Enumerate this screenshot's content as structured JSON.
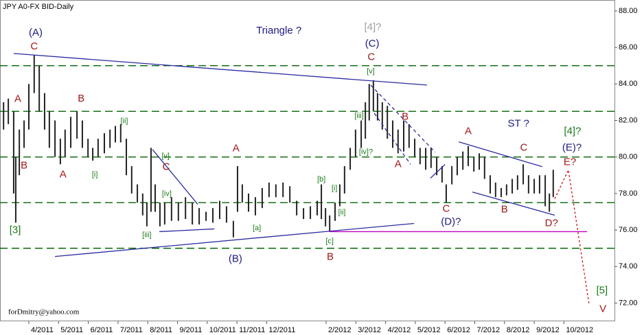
{
  "chart_data": {
    "type": "hilo",
    "title": "JPY A0-FX BID-Daily",
    "watermark": "forDmitry@yahoo.com",
    "color": "#222222",
    "xlim": [
      -0.97,
      19.7
    ],
    "ylim": [
      71.0,
      88.6
    ],
    "xticks": [
      {
        "value": 0,
        "label": "4/2011"
      },
      {
        "value": 1,
        "label": "5/2011"
      },
      {
        "value": 2,
        "label": "6/2011"
      },
      {
        "value": 3,
        "label": "7/2011"
      },
      {
        "value": 4,
        "label": "8/2011"
      },
      {
        "value": 5,
        "label": "9/2011"
      },
      {
        "value": 6,
        "label": "10/2011"
      },
      {
        "value": 7,
        "label": "11/2011"
      },
      {
        "value": 8,
        "label": "12/2011"
      },
      {
        "value": 10,
        "label": "2/2012"
      },
      {
        "value": 11,
        "label": "3/2012"
      },
      {
        "value": 12,
        "label": "4/2012"
      },
      {
        "value": 13,
        "label": "5/2012"
      },
      {
        "value": 14,
        "label": "6/2012"
      },
      {
        "value": 15,
        "label": "7/2012"
      },
      {
        "value": 16,
        "label": "8/2012"
      },
      {
        "value": 17,
        "label": "9/2012"
      },
      {
        "value": 18,
        "label": "10/2012"
      }
    ],
    "yticks": [
      {
        "value": 72,
        "label": "72.00"
      },
      {
        "value": 74,
        "label": "74.00"
      },
      {
        "value": 76,
        "label": "76.00"
      },
      {
        "value": 78,
        "label": "78.00"
      },
      {
        "value": 80,
        "label": "80.00"
      },
      {
        "value": 82,
        "label": "82.00"
      },
      {
        "value": 84,
        "label": "84.00"
      },
      {
        "value": 86,
        "label": "86.00"
      },
      {
        "value": 88,
        "label": "88.00"
      }
    ],
    "levels": [
      85,
      82.5,
      80,
      77.5,
      75
    ],
    "level_color": "#006400",
    "x": [
      -0.85,
      -0.69,
      -0.51,
      -0.44,
      -0.32,
      -0.16,
      0,
      0.18,
      0.35,
      0.53,
      0.69,
      0.88,
      1.06,
      1.22,
      1.41,
      1.62,
      1.8,
      1.99,
      2.15,
      2.33,
      2.54,
      2.73,
      2.91,
      3.09,
      3.28,
      3.46,
      3.65,
      3.83,
      3.97,
      4.11,
      4.25,
      4.41,
      4.57,
      4.8,
      5.03,
      5.27,
      5.5,
      5.73,
      5.96,
      6.19,
      6.42,
      6.65,
      6.88,
      7.02,
      7.18,
      7.39,
      7.62,
      7.85,
      8.08,
      8.31,
      8.55,
      8.78,
      9.01,
      9.24,
      9.47,
      9.7,
      9.84,
      9.98,
      10.12,
      10.3,
      10.46,
      10.62,
      10.81,
      10.99,
      11.18,
      11.32,
      11.45,
      11.59,
      11.73,
      11.89,
      12.06,
      12.24,
      12.42,
      12.61,
      12.79,
      12.98,
      13.16,
      13.35,
      13.53,
      13.72,
      13.9,
      14.04,
      14.23,
      14.41,
      14.6,
      14.78,
      14.97,
      15.15,
      15.33,
      15.52,
      15.7,
      15.89,
      16.07,
      16.26,
      16.44,
      16.63,
      16.81,
      17,
      17.18,
      17.37,
      17.51,
      17.64
    ],
    "high": [
      83,
      83.2,
      82.5,
      80,
      81.5,
      82,
      84,
      85.6,
      85,
      83.5,
      82.5,
      82,
      81,
      81.5,
      82.2,
      82.5,
      82,
      81,
      80.5,
      81,
      81.3,
      81.5,
      81.7,
      81.8,
      81,
      79.5,
      78.5,
      78,
      77.5,
      80.5,
      78.5,
      77.5,
      77.5,
      77.8,
      77.5,
      77.8,
      77.5,
      77.2,
      77,
      77.2,
      77.6,
      77.3,
      76.5,
      79.5,
      78.5,
      78,
      77.8,
      78.3,
      78.6,
      78.5,
      78.6,
      78.4,
      77.6,
      77.2,
      77.3,
      77.6,
      78.5,
      77.2,
      76.8,
      77.5,
      78.5,
      79.5,
      80.5,
      81.5,
      82,
      83,
      84,
      84.2,
      83.5,
      83,
      82.8,
      82,
      81.5,
      82,
      81.8,
      81,
      80.5,
      80.5,
      80.5,
      80,
      79.5,
      78.5,
      79.5,
      80,
      80.3,
      80.6,
      80,
      80.2,
      80,
      79,
      78.6,
      78.3,
      78.5,
      78.8,
      79,
      79.6,
      79,
      78.8,
      79,
      79,
      78,
      79.3
    ],
    "low": [
      81.5,
      81.8,
      78,
      76.4,
      79,
      80.5,
      81.5,
      83.5,
      82.5,
      81.5,
      80.5,
      80,
      79.6,
      80,
      80.5,
      81,
      80.5,
      80,
      79.8,
      80,
      80.2,
      80.5,
      80.8,
      80.8,
      79,
      78,
      77.5,
      76.8,
      76.2,
      77,
      77,
      76.2,
      76.3,
      76.5,
      76.5,
      76.6,
      76.3,
      76.3,
      76.5,
      76.4,
      76.6,
      76.4,
      75.6,
      77,
      77.5,
      77,
      76.8,
      77.2,
      77.8,
      77.8,
      77.8,
      77.5,
      76.8,
      76.6,
      76.6,
      76.8,
      76.6,
      76.2,
      75.9,
      76.5,
      77.3,
      78,
      79.3,
      80,
      80.5,
      81,
      82,
      82.5,
      82,
      81.5,
      81,
      80.5,
      80.2,
      80.3,
      80.5,
      80,
      79.6,
      79.3,
      79.4,
      79,
      78.6,
      77.5,
      78.5,
      79,
      79.3,
      79.5,
      79.2,
      79.3,
      78.8,
      78,
      77.8,
      77.8,
      77.9,
      78,
      78.2,
      78.5,
      78,
      78,
      78,
      77.3,
      77,
      77.8
    ],
    "lines": [
      {
        "x": [
          -0.51,
          13.39
        ],
        "y": [
          85.67,
          83.94
        ],
        "color": "#2a2aa0",
        "style": "solid"
      },
      {
        "x": [
          0.88,
          12.96
        ],
        "y": [
          74.55,
          76.36
        ],
        "color": "#2a2aa0",
        "style": "solid"
      },
      {
        "x": [
          4.16,
          5.68
        ],
        "y": [
          80.41,
          77.41
        ],
        "color": "#2a2aa0",
        "style": "solid"
      },
      {
        "x": [
          4.39,
          6.24
        ],
        "y": [
          75.91,
          76.06
        ],
        "color": "#2a2aa0",
        "style": "solid"
      },
      {
        "x": [
          11.5,
          13.67
        ],
        "y": [
          83.94,
          80.26
        ],
        "color": "#2a2aa0",
        "style": "dashed"
      },
      {
        "x": [
          11.62,
          12.84
        ],
        "y": [
          82.4,
          79.6
        ],
        "color": "#2a2aa0",
        "style": "dashed"
      },
      {
        "x": [
          13.51,
          14.0
        ],
        "y": [
          78.84,
          79.59
        ],
        "color": "#2a2aa0",
        "style": "solid"
      },
      {
        "x": [
          14.46,
          17.27
        ],
        "y": [
          80.83,
          79.47
        ],
        "color": "#2a2aa0",
        "style": "solid"
      },
      {
        "x": [
          14.92,
          17.69
        ],
        "y": [
          78.08,
          76.81
        ],
        "color": "#2a2aa0",
        "style": "solid"
      },
      {
        "x": [
          10.12,
          18.78
        ],
        "y": [
          75.91,
          75.91
        ],
        "color": "#c000c0",
        "style": "solid"
      },
      {
        "x": [
          17.69,
          18.15,
          18.85
        ],
        "y": [
          77.71,
          79.29,
          71.89
        ],
        "color": "#d01010",
        "style": "dotted"
      }
    ],
    "annotations": [
      {
        "text": "(A)",
        "x": 0.23,
        "y": 86.8,
        "color": "#1a1a80"
      },
      {
        "text": "C",
        "x": 0.18,
        "y": 86.05,
        "color": "#a01818"
      },
      {
        "text": "A",
        "x": -0.37,
        "y": 83.16,
        "color": "#a01818"
      },
      {
        "text": "B",
        "x": -0.16,
        "y": 79.51,
        "color": "#a01818"
      },
      {
        "text": "[3]",
        "x": -0.46,
        "y": 75.98,
        "color": "#1a7a1a"
      },
      {
        "text": "B",
        "x": 1.76,
        "y": 83.19,
        "color": "#a01818"
      },
      {
        "text": "A",
        "x": 1.15,
        "y": 79.02,
        "color": "#a01818"
      },
      {
        "text": "[i]",
        "x": 2.22,
        "y": 79.02,
        "color": "#1a7a1a",
        "minor": true
      },
      {
        "text": "[ii]",
        "x": 3.21,
        "y": 81.95,
        "color": "#1a7a1a",
        "minor": true
      },
      {
        "text": "[iii]",
        "x": 3.97,
        "y": 75.72,
        "color": "#1a7a1a",
        "minor": true
      },
      {
        "text": "[iv]",
        "x": 4.64,
        "y": 77.97,
        "color": "#1a7a1a",
        "minor": true
      },
      {
        "text": "[v]",
        "x": 4.6,
        "y": 80.04,
        "color": "#1a7a1a",
        "minor": true
      },
      {
        "text": "C",
        "x": 4.62,
        "y": 79.44,
        "color": "#a01818"
      },
      {
        "text": "Triangle ?",
        "x": 8.41,
        "y": 86.91,
        "color": "#1a1a80"
      },
      {
        "text": "A",
        "x": 6.97,
        "y": 80.45,
        "color": "#a01818"
      },
      {
        "text": "[a]",
        "x": 7.67,
        "y": 76.09,
        "color": "#1a7a1a",
        "minor": true
      },
      {
        "text": "(B)",
        "x": 6.95,
        "y": 74.4,
        "color": "#1a1a80"
      },
      {
        "text": "[b]",
        "x": 9.84,
        "y": 78.76,
        "color": "#1a7a1a",
        "minor": true
      },
      {
        "text": "[i]",
        "x": 10.28,
        "y": 78.27,
        "color": "#1a7a1a",
        "minor": true
      },
      {
        "text": "[ii]",
        "x": 10.53,
        "y": 76.96,
        "color": "#1a7a1a",
        "minor": true
      },
      {
        "text": "[c]",
        "x": 10.12,
        "y": 75.38,
        "color": "#1a7a1a",
        "minor": true
      },
      {
        "text": "B",
        "x": 10.14,
        "y": 74.52,
        "color": "#a01818"
      },
      {
        "text": "[iii]",
        "x": 11.11,
        "y": 82.25,
        "color": "#1a7a1a",
        "minor": true
      },
      {
        "text": "[iv]?",
        "x": 11.34,
        "y": 80.26,
        "color": "#1a7a1a",
        "minor": true
      },
      {
        "text": "[v]",
        "x": 11.5,
        "y": 84.69,
        "color": "#1a7a1a",
        "minor": true
      },
      {
        "text": "C",
        "x": 11.52,
        "y": 85.45,
        "color": "#a01818"
      },
      {
        "text": "(C)",
        "x": 11.55,
        "y": 86.2,
        "color": "#1a1a80"
      },
      {
        "text": "[4]?",
        "x": 11.57,
        "y": 87.1,
        "color": "#a0a0a0"
      },
      {
        "text": "B",
        "x": 12.66,
        "y": 82.18,
        "color": "#a01818"
      },
      {
        "text": "A",
        "x": 12.42,
        "y": 79.59,
        "color": "#a01818"
      },
      {
        "text": "C",
        "x": 14.04,
        "y": 77.15,
        "color": "#a01818"
      },
      {
        "text": "(D)?",
        "x": 14.2,
        "y": 76.43,
        "color": "#1a1a80"
      },
      {
        "text": "A",
        "x": 14.78,
        "y": 81.39,
        "color": "#a01818"
      },
      {
        "text": "ST ?",
        "x": 16.47,
        "y": 81.81,
        "color": "#1a1a80"
      },
      {
        "text": "C",
        "x": 16.65,
        "y": 80.49,
        "color": "#a01818"
      },
      {
        "text": "[4]?",
        "x": 18.29,
        "y": 81.39,
        "color": "#1a7a1a"
      },
      {
        "text": "(E)?",
        "x": 18.27,
        "y": 80.49,
        "color": "#1a1a80"
      },
      {
        "text": "E?",
        "x": 18.2,
        "y": 79.7,
        "color": "#a01818"
      },
      {
        "text": "B",
        "x": 16.0,
        "y": 77.11,
        "color": "#a01818"
      },
      {
        "text": "D?",
        "x": 17.58,
        "y": 76.36,
        "color": "#a01818"
      },
      {
        "text": "[5]",
        "x": 19.28,
        "y": 72.68,
        "color": "#1a7a1a"
      },
      {
        "text": "V",
        "x": 19.31,
        "y": 71.66,
        "color": "#a01818"
      }
    ]
  }
}
